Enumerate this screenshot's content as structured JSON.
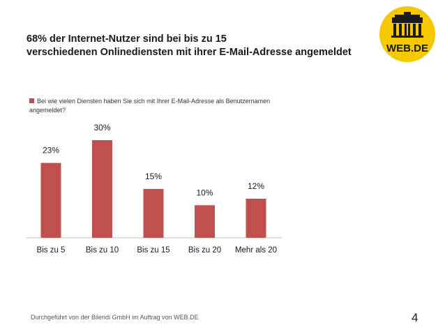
{
  "title": {
    "line1": "68% der Internet-Nutzer sind bei bis zu 15",
    "line2": "verschiedenen Onlinediensten mit ihrer E-Mail-Adresse angemeldet"
  },
  "logo": {
    "text": "WEB.DE",
    "icon": "brandenburg-gate-icon"
  },
  "colors": {
    "bar": "#c0504d",
    "logo_yellow": "#f5c800",
    "text": "#1a1a1a"
  },
  "chart_data": {
    "type": "bar",
    "title": "",
    "legend": "Bei wie vielen Diensten haben Sie sich mit Ihrer E-Mail-Adresse als Benutzernamen angemeldet?",
    "categories": [
      "Bis zu 5",
      "Bis zu 10",
      "Bis zu 15",
      "Bis zu 20",
      "Mehr als 20"
    ],
    "values": [
      23,
      30,
      15,
      10,
      12
    ],
    "labels": [
      "23%",
      "30%",
      "15%",
      "10%",
      "12%"
    ],
    "ylim": [
      0,
      35
    ],
    "xlabel": "",
    "ylabel": "",
    "grid": false
  },
  "footer": "Durchgeführt von der Bilendi GmbH im Auftrag von WEB.DE",
  "page_number": "4"
}
